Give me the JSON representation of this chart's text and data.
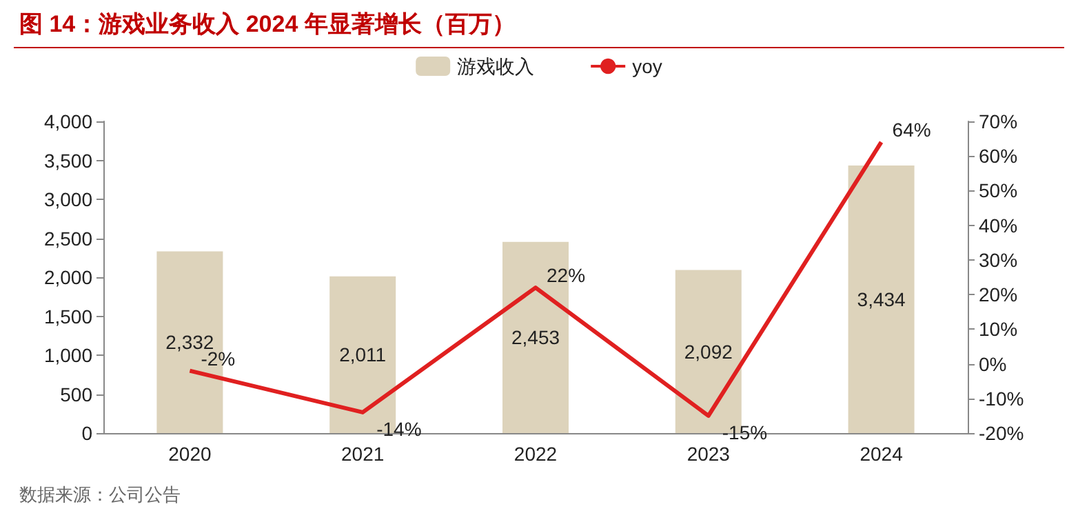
{
  "chart_data": {
    "type": "bar",
    "title": "图 14：游戏业务收入 2024 年显著增长（百万）",
    "categories": [
      "2020",
      "2021",
      "2022",
      "2023",
      "2024"
    ],
    "series": [
      {
        "name": "游戏收入",
        "color": "#ddd3bb",
        "values": [
          2332,
          2011,
          2453,
          2092,
          3434
        ],
        "value_labels": [
          "2,332",
          "2,011",
          "2,453",
          "2,092",
          "3,434"
        ]
      },
      {
        "name": "yoy",
        "type": "line",
        "axis": "y2",
        "color": "#e02020",
        "values": [
          -2,
          -14,
          22,
          -15,
          64
        ],
        "value_labels": [
          "-2%",
          "-14%",
          "22%",
          "-15%",
          "64%"
        ]
      }
    ],
    "ylim": [
      0,
      4000
    ],
    "yticks": [
      0,
      500,
      {
        "value": 1000,
        "label": "1,000"
      },
      {
        "value": 1500,
        "label": "1,500"
      },
      {
        "value": 2000,
        "label": "2,000"
      },
      {
        "value": 2500,
        "label": "2,500"
      },
      {
        "value": 3000,
        "label": "3,000"
      },
      {
        "value": 3500,
        "label": "3,500"
      },
      {
        "value": 4000,
        "label": "4,000"
      }
    ],
    "y2lim": [
      -20,
      70
    ],
    "y2ticks": [
      {
        "value": -20,
        "label": "-20%"
      },
      {
        "value": -10,
        "label": "-10%"
      },
      {
        "value": 0,
        "label": "0%"
      },
      {
        "value": 10,
        "label": "10%"
      },
      {
        "value": 20,
        "label": "20%"
      },
      {
        "value": 30,
        "label": "30%"
      },
      {
        "value": 40,
        "label": "40%"
      },
      {
        "value": 50,
        "label": "50%"
      },
      {
        "value": 60,
        "label": "60%"
      },
      {
        "value": 70,
        "label": "70%"
      }
    ],
    "legend": "top",
    "grid": false,
    "marker": "none",
    "annotations": [
      "数据来源：公司公告"
    ]
  }
}
